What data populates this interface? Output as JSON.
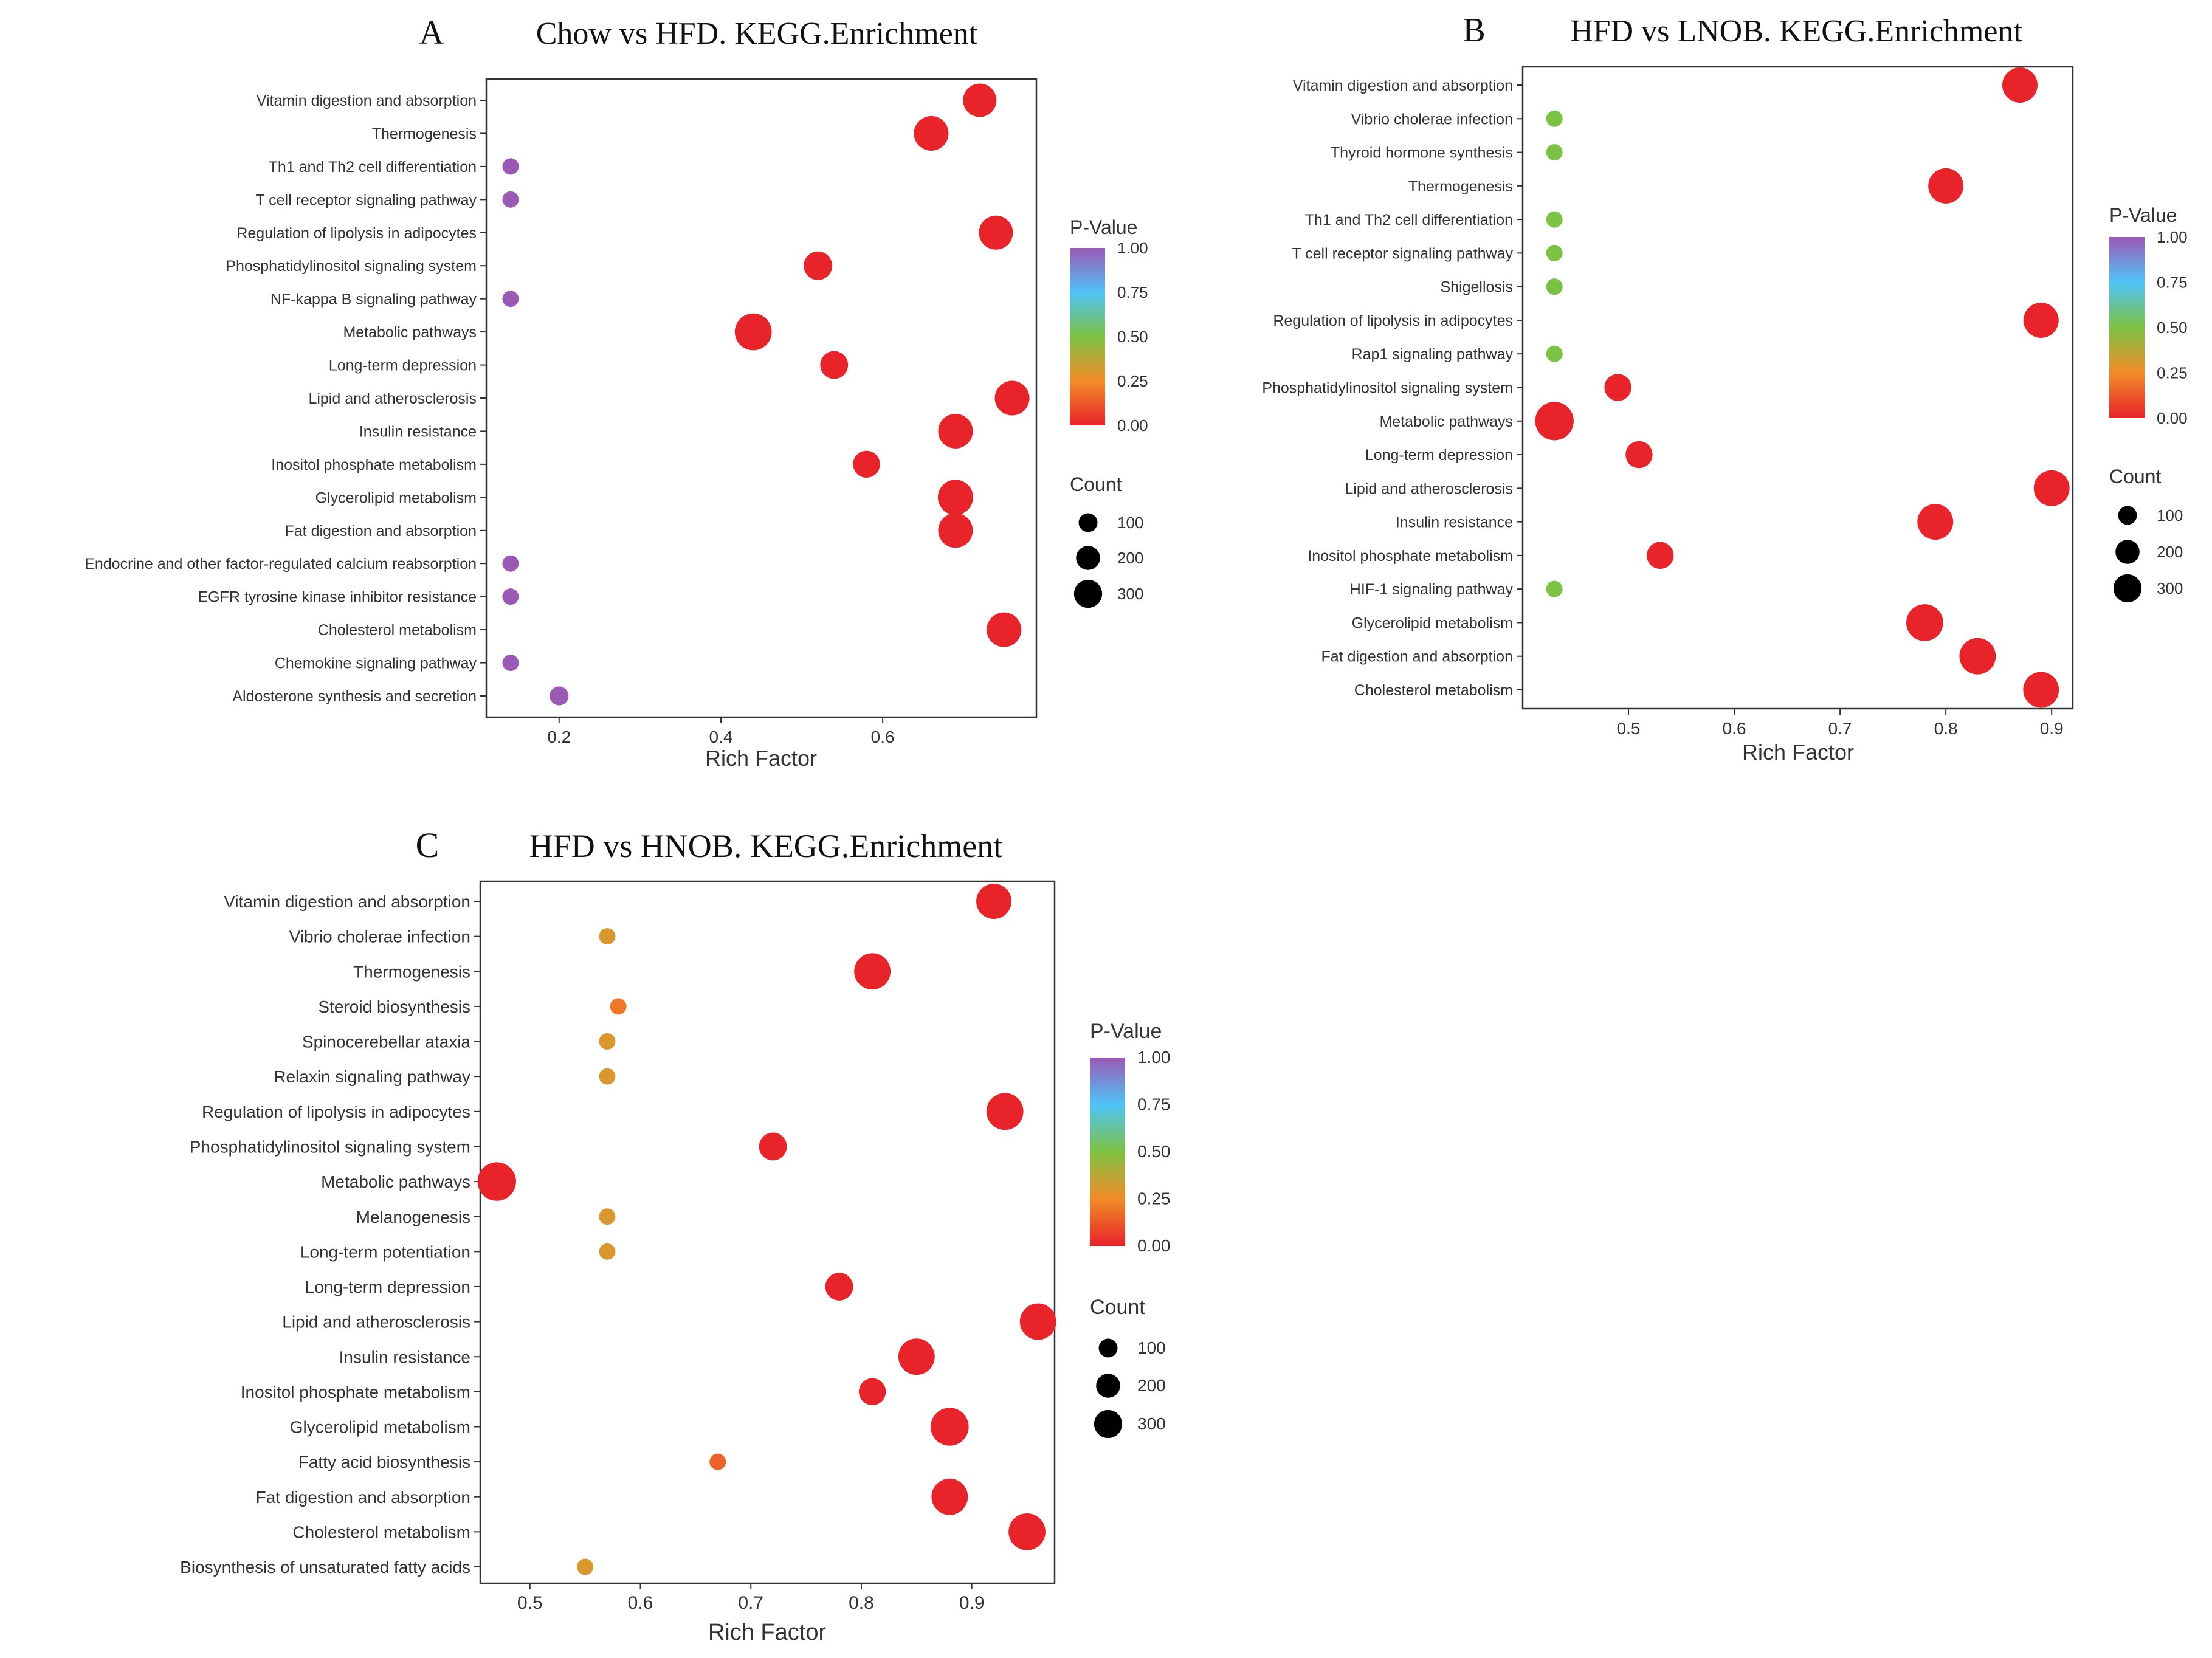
{
  "figure": {
    "panels": [
      "A",
      "B",
      "C"
    ]
  },
  "colors": {
    "grad_top": "#9b59b6",
    "grad_mid1": "#4fc3f7",
    "grad_mid2": "#7cc242",
    "grad_mid3": "#f28c28",
    "grad_bottom": "#e8232a",
    "axis": "#333333",
    "text": "#333333"
  },
  "chart_data": [
    {
      "type": "scatter",
      "letter": "A",
      "title": "Chow vs HFD. KEGG.Enrichment",
      "xlabel": "Rich Factor",
      "ylabel": "",
      "xlim": [
        0.11,
        0.79
      ],
      "xticks": [
        0.2,
        0.4,
        0.6
      ],
      "xtick_labels": [
        "0.2",
        "0.4",
        "0.6"
      ],
      "legend": {
        "color_title": "P-Value",
        "color_ticks": [
          "1.00",
          "0.75",
          "0.50",
          "0.25",
          "0.00"
        ],
        "size_title": "Count",
        "size_ticks": [
          "100",
          "200",
          "300"
        ]
      },
      "categories": [
        "Vitamin digestion and absorption",
        "Thermogenesis",
        "Th1 and Th2 cell differentiation",
        "T cell receptor signaling pathway",
        "Regulation of lipolysis in adipocytes",
        "Phosphatidylinositol signaling system",
        "NF-kappa B signaling pathway",
        "Metabolic pathways",
        "Long-term depression",
        "Lipid and atherosclerosis",
        "Insulin resistance",
        "Inositol phosphate metabolism",
        "Glycerolipid metabolism",
        "Fat digestion and absorption",
        "Endocrine and other factor-regulated calcium reabsorption",
        "EGFR tyrosine kinase inhibitor resistance",
        "Cholesterol metabolism",
        "Chemokine signaling pathway",
        "Aldosterone synthesis and secretion"
      ],
      "x": [
        0.72,
        0.66,
        0.14,
        0.14,
        0.74,
        0.52,
        0.14,
        0.44,
        0.54,
        0.76,
        0.69,
        0.58,
        0.69,
        0.69,
        0.14,
        0.14,
        0.75,
        0.14,
        0.2
      ],
      "pvalue": [
        0.0,
        0.0,
        1.0,
        1.0,
        0.0,
        0.0,
        1.0,
        0.0,
        0.0,
        0.0,
        0.0,
        0.0,
        0.0,
        0.0,
        1.0,
        1.0,
        0.0,
        1.0,
        1.0
      ],
      "count": [
        200,
        220,
        20,
        20,
        210,
        130,
        20,
        260,
        120,
        220,
        220,
        110,
        230,
        220,
        20,
        20,
        220,
        20,
        35
      ]
    },
    {
      "type": "scatter",
      "letter": "B",
      "title": "HFD vs LNOB. KEGG.Enrichment",
      "xlabel": "Rich Factor",
      "ylabel": "",
      "xlim": [
        0.4,
        0.92
      ],
      "xticks": [
        0.5,
        0.6,
        0.7,
        0.8,
        0.9
      ],
      "xtick_labels": [
        "0.5",
        "0.6",
        "0.7",
        "0.8",
        "0.9"
      ],
      "legend": {
        "color_title": "P-Value",
        "color_ticks": [
          "1.00",
          "0.75",
          "0.50",
          "0.25",
          "0.00"
        ],
        "size_title": "Count",
        "size_ticks": [
          "100",
          "200",
          "300"
        ]
      },
      "categories": [
        "Vitamin digestion and absorption",
        "Vibrio cholerae infection",
        "Thyroid hormone synthesis",
        "Thermogenesis",
        "Th1 and Th2 cell differentiation",
        "T cell receptor signaling pathway",
        "Shigellosis",
        "Regulation of lipolysis in adipocytes",
        "Rap1 signaling pathway",
        "Phosphatidylinositol signaling system",
        "Metabolic pathways",
        "Long-term depression",
        "Lipid and atherosclerosis",
        "Insulin resistance",
        "Inositol phosphate metabolism",
        "HIF-1 signaling pathway",
        "Glycerolipid metabolism",
        "Fat digestion and absorption",
        "Cholesterol metabolism"
      ],
      "x": [
        0.87,
        0.43,
        0.43,
        0.8,
        0.43,
        0.43,
        0.43,
        0.89,
        0.43,
        0.49,
        0.43,
        0.51,
        0.9,
        0.79,
        0.53,
        0.43,
        0.78,
        0.83,
        0.89
      ],
      "pvalue": [
        0.0,
        0.5,
        0.5,
        0.0,
        0.5,
        0.5,
        0.5,
        0.0,
        0.5,
        0.0,
        0.0,
        0.0,
        0.0,
        0.0,
        0.0,
        0.5,
        0.0,
        0.0,
        0.0
      ],
      "count": [
        230,
        20,
        20,
        230,
        20,
        20,
        20,
        230,
        20,
        110,
        290,
        110,
        240,
        240,
        110,
        20,
        260,
        250,
        240
      ]
    },
    {
      "type": "scatter",
      "letter": "C",
      "title": "HFD vs HNOB. KEGG.Enrichment",
      "xlabel": "Rich Factor",
      "ylabel": "",
      "xlim": [
        0.455,
        0.975
      ],
      "xticks": [
        0.5,
        0.6,
        0.7,
        0.8,
        0.9
      ],
      "xtick_labels": [
        "0.5",
        "0.6",
        "0.7",
        "0.8",
        "0.9"
      ],
      "legend": {
        "color_title": "P-Value",
        "color_ticks": [
          "1.00",
          "0.75",
          "0.50",
          "0.25",
          "0.00"
        ],
        "size_title": "Count",
        "size_ticks": [
          "100",
          "200",
          "300"
        ]
      },
      "categories": [
        "Vitamin digestion and absorption",
        "Vibrio cholerae infection",
        "Thermogenesis",
        "Steroid biosynthesis",
        "Spinocerebellar ataxia",
        "Relaxin signaling pathway",
        "Regulation of lipolysis in adipocytes",
        "Phosphatidylinositol signaling system",
        "Metabolic pathways",
        "Melanogenesis",
        "Long-term potentiation",
        "Long-term depression",
        "Lipid and atherosclerosis",
        "Insulin resistance",
        "Inositol phosphate metabolism",
        "Glycerolipid metabolism",
        "Fatty acid biosynthesis",
        "Fat digestion and absorption",
        "Cholesterol metabolism",
        "Biosynthesis of unsaturated fatty acids"
      ],
      "x": [
        0.92,
        0.57,
        0.81,
        0.58,
        0.57,
        0.57,
        0.93,
        0.72,
        0.47,
        0.57,
        0.57,
        0.78,
        0.96,
        0.85,
        0.81,
        0.88,
        0.67,
        0.88,
        0.95,
        0.55
      ],
      "pvalue": [
        0.0,
        0.3,
        0.0,
        0.2,
        0.3,
        0.3,
        0.0,
        0.0,
        0.0,
        0.3,
        0.3,
        0.0,
        0.0,
        0.0,
        0.0,
        0.0,
        0.15,
        0.0,
        0.0,
        0.3
      ],
      "count": [
        230,
        20,
        250,
        20,
        20,
        20,
        260,
        120,
        290,
        20,
        20,
        120,
        250,
        250,
        110,
        280,
        20,
        250,
        260,
        20
      ]
    }
  ]
}
